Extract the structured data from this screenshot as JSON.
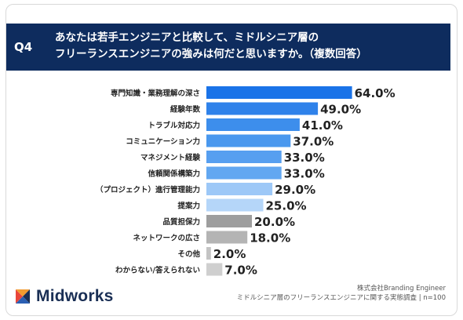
{
  "header": {
    "question_label": "Q4",
    "question_line1": "あなたは若手エンジニアと比較して、ミドルシニア層の",
    "question_line2": "フリーランスエンジニアの強みは何だと思いますか。（複数回答）"
  },
  "chart_data": {
    "type": "bar",
    "orientation": "horizontal",
    "categories": [
      "専門知識・業務理解の深さ",
      "経験年数",
      "トラブル対応力",
      "コミュニケーション力",
      "マネジメント経験",
      "信頼関係構築力",
      "（プロジェクト）進行管理能力",
      "提案力",
      "品質担保力",
      "ネットワークの広さ",
      "その他",
      "わからない/答えられない"
    ],
    "values": [
      64.0,
      49.0,
      41.0,
      37.0,
      33.0,
      33.0,
      29.0,
      25.0,
      20.0,
      18.0,
      2.0,
      7.0
    ],
    "value_labels": [
      "64.0%",
      "49.0%",
      "41.0%",
      "37.0%",
      "33.0%",
      "33.0%",
      "29.0%",
      "25.0%",
      "20.0%",
      "18.0%",
      "2.0%",
      "7.0%"
    ],
    "bar_colors": [
      "#1a73e8",
      "#2f82ea",
      "#3d8eec",
      "#4a98ee",
      "#579ff0",
      "#62a7f1",
      "#9dc8f7",
      "#b5d6f9",
      "#9e9e9e",
      "#b4b4b4",
      "#c4c4c4",
      "#cfcfcf"
    ],
    "xlim": [
      0,
      100
    ],
    "grid": false,
    "legend": "none"
  },
  "footer": {
    "brand": "Midworks",
    "source_line1": "株式会社Branding Engineer",
    "source_line2": "ミドルシニア層のフリーランスエンジニアに関する実態調査 | n=100"
  }
}
